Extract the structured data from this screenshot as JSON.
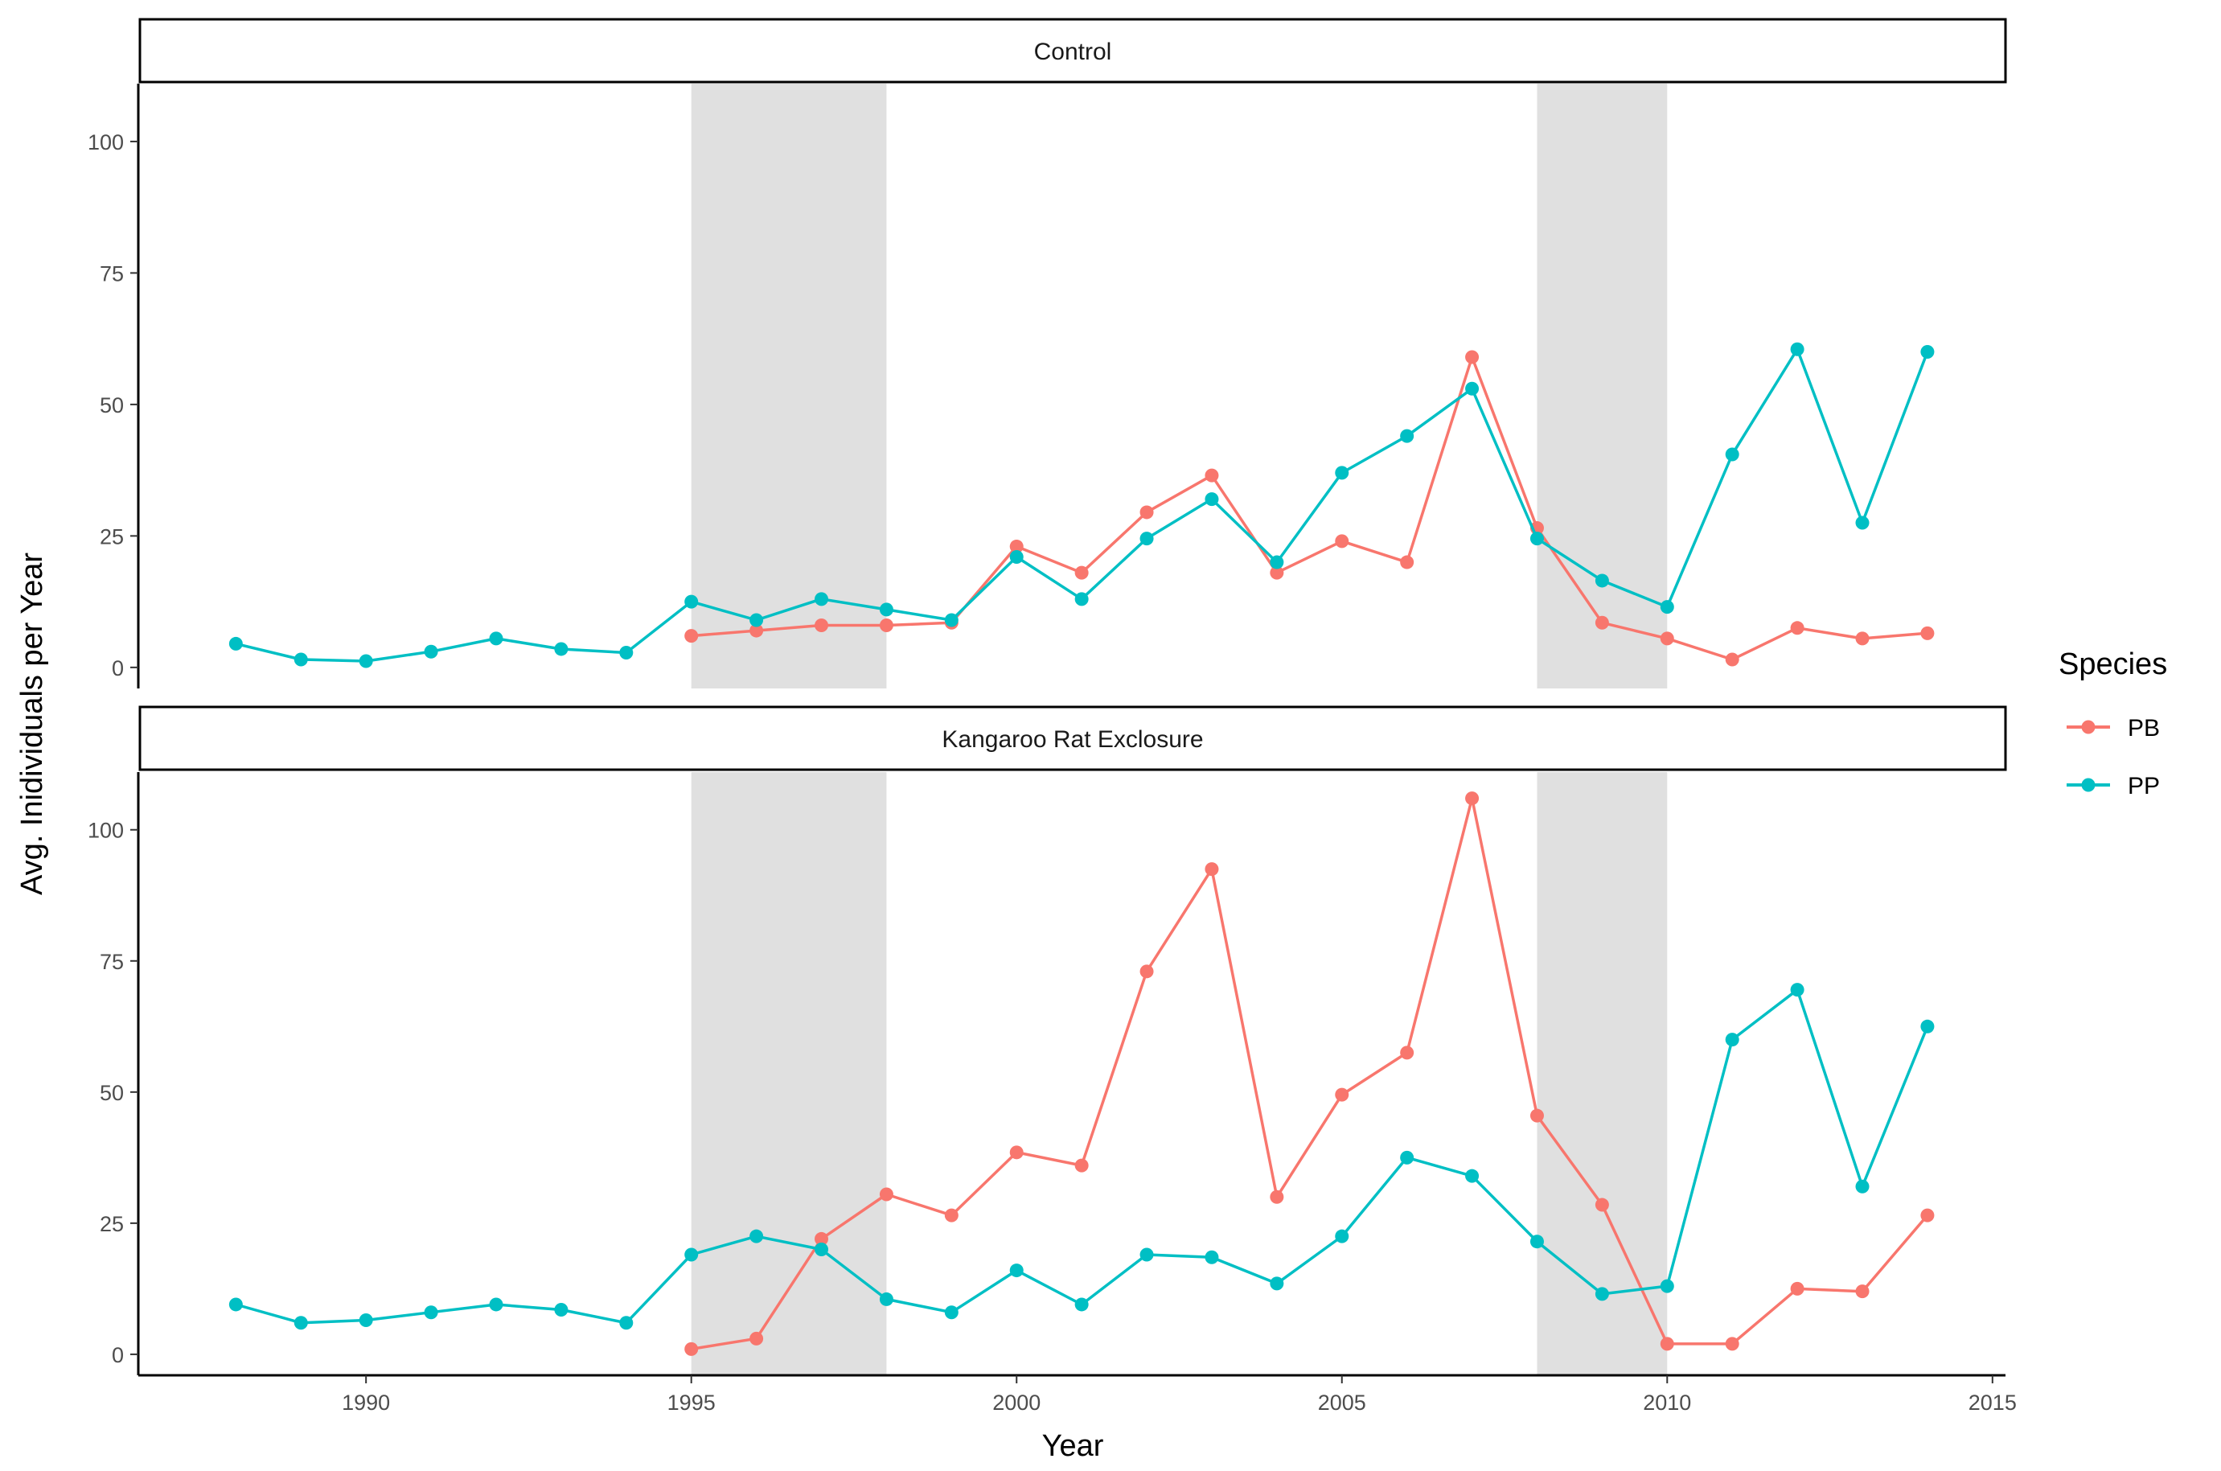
{
  "chart_data": {
    "type": "line",
    "xlabel": "Year",
    "ylabel": "Avg. Inidividuals per Year",
    "xlim": [
      1986.5,
      2015.2
    ],
    "ylim": [
      -4,
      111
    ],
    "x_ticks": [
      1990,
      1995,
      2000,
      2005,
      2010,
      2015
    ],
    "y_ticks": [
      0,
      25,
      50,
      75,
      100
    ],
    "shaded_periods": [
      [
        1995,
        1998
      ],
      [
        2008,
        2010
      ]
    ],
    "legend": {
      "title": "Species",
      "position": "right"
    },
    "colors": {
      "PB": "#F8766D",
      "PP": "#00BFC4",
      "shade": "#e0e0e0"
    },
    "panels": [
      {
        "title": "Control",
        "series": [
          {
            "name": "PB",
            "x": [
              1995,
              1996,
              1997,
              1998,
              1999,
              2000,
              2001,
              2002,
              2003,
              2004,
              2005,
              2006,
              2007,
              2008,
              2009,
              2010,
              2011,
              2012,
              2013,
              2014
            ],
            "values": [
              6,
              7,
              8,
              8,
              8.5,
              23,
              18,
              29.5,
              36.5,
              18,
              24,
              20,
              59,
              26.5,
              8.5,
              5.5,
              1.5,
              7.5,
              5.5,
              6.5
            ]
          },
          {
            "name": "PP",
            "x": [
              1988,
              1989,
              1990,
              1991,
              1992,
              1993,
              1994,
              1995,
              1996,
              1997,
              1998,
              1999,
              2000,
              2001,
              2002,
              2003,
              2004,
              2005,
              2006,
              2007,
              2008,
              2009,
              2010,
              2011,
              2012,
              2013,
              2014
            ],
            "values": [
              4.5,
              1.5,
              1.2,
              3,
              5.5,
              3.5,
              2.8,
              12.5,
              9,
              13,
              11,
              9,
              21,
              13,
              24.5,
              32,
              20,
              37,
              44,
              53,
              24.5,
              16.5,
              11.5,
              40.5,
              60.5,
              27.5,
              60
            ]
          }
        ]
      },
      {
        "title": "Kangaroo Rat Exclosure",
        "series": [
          {
            "name": "PB",
            "x": [
              1995,
              1996,
              1997,
              1998,
              1999,
              2000,
              2001,
              2002,
              2003,
              2004,
              2005,
              2006,
              2007,
              2008,
              2009,
              2010,
              2011,
              2012,
              2013,
              2014
            ],
            "values": [
              1,
              3,
              22,
              30.5,
              26.5,
              38.5,
              36,
              73,
              92.5,
              30,
              49.5,
              57.5,
              106,
              45.5,
              28.5,
              2,
              2,
              12.5,
              12,
              26.5
            ]
          },
          {
            "name": "PP",
            "x": [
              1988,
              1989,
              1990,
              1991,
              1992,
              1993,
              1994,
              1995,
              1996,
              1997,
              1998,
              1999,
              2000,
              2001,
              2002,
              2003,
              2004,
              2005,
              2006,
              2007,
              2008,
              2009,
              2010,
              2011,
              2012,
              2013,
              2014
            ],
            "values": [
              9.5,
              6,
              6.5,
              8,
              9.5,
              8.5,
              6,
              19,
              22.5,
              20,
              10.5,
              8,
              16,
              9.5,
              19,
              18.5,
              13.5,
              22.5,
              37.5,
              34,
              21.5,
              11.5,
              13,
              60,
              69.5,
              32,
              62.5
            ]
          }
        ]
      }
    ]
  }
}
